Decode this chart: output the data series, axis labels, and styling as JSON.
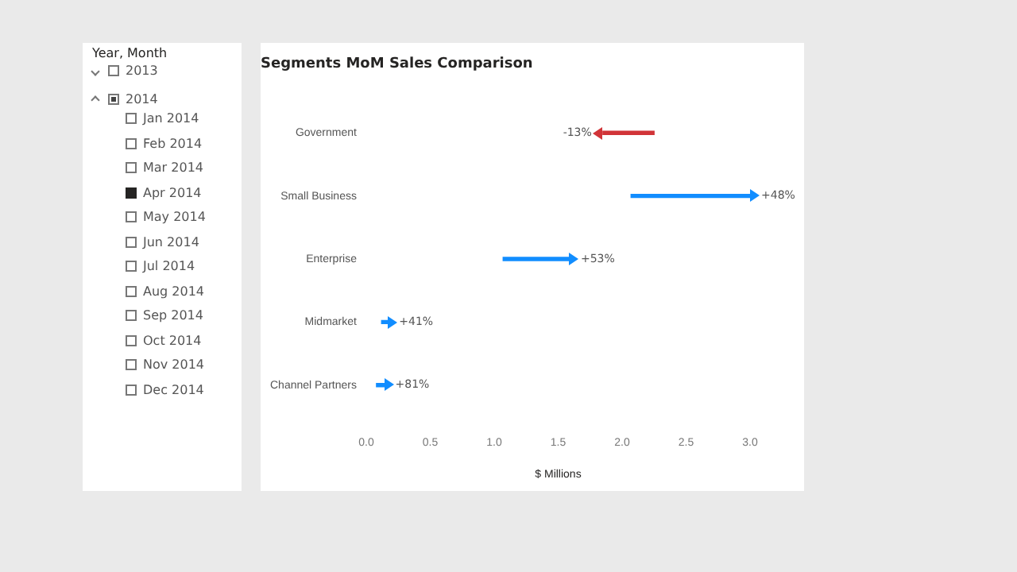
{
  "chart_data": [
    {
      "type": "other",
      "title": "Year, Month",
      "annotations": [
        "2013",
        "2014",
        "Jan 2014",
        "Feb 2014",
        "Mar 2014",
        "Apr 2014",
        "May 2014",
        "Jun 2014",
        "Jul 2014",
        "Aug 2014",
        "Sep 2014",
        "Oct 2014",
        "Nov 2014",
        "Dec 2014"
      ]
    },
    {
      "type": "bar",
      "orientation": "horizontal",
      "title": "Segments MoM Sales Comparison",
      "xlabel": "$ Millions",
      "categories": [
        "Government",
        "Small Business",
        "Enterprise",
        "Midmarket",
        "Channel Partners"
      ],
      "base": [
        2.25,
        2.07,
        1.07,
        0.12,
        0.08
      ],
      "values": [
        -0.4,
        0.93,
        0.52,
        0.05,
        0.06
      ],
      "colors": [
        "#d13438",
        "#118dff",
        "#118dff",
        "#118dff",
        "#118dff"
      ],
      "annotations": [
        {
          "text": "-13%",
          "x": 1.85,
          "y": "Government"
        },
        {
          "text": "+48%",
          "x": 3.0,
          "y": "Small Business"
        },
        {
          "text": "+53%",
          "x": 1.59,
          "y": "Enterprise"
        },
        {
          "text": "+41%",
          "x": 0.17,
          "y": "Midmarket"
        },
        {
          "text": "+81%",
          "x": 0.14,
          "y": "Channel Partners"
        }
      ],
      "xlim": [
        0,
        3.0
      ],
      "xticks": [
        {
          "value": 0,
          "label": "0.0"
        },
        {
          "value": 0.5,
          "label": "0.5"
        },
        {
          "value": 1,
          "label": "1.0"
        },
        {
          "value": 1.5,
          "label": "1.5"
        },
        {
          "value": 2,
          "label": "2.0"
        },
        {
          "value": 2.5,
          "label": "2.5"
        },
        {
          "value": 3,
          "label": "3.0"
        }
      ],
      "grid": false,
      "legend": false
    }
  ]
}
